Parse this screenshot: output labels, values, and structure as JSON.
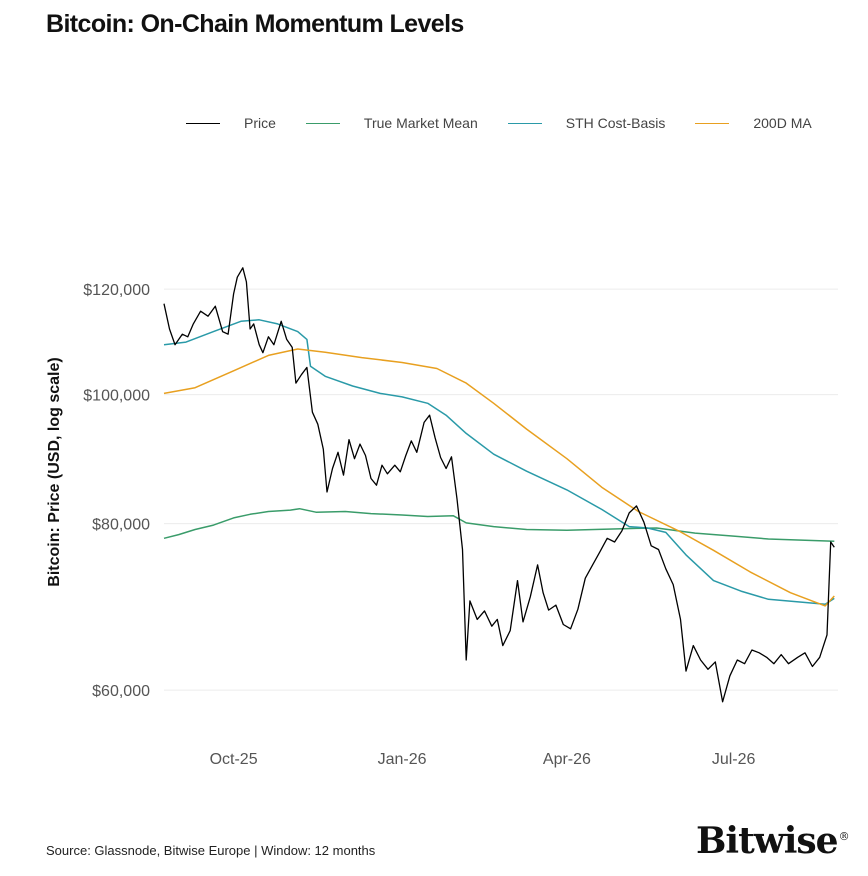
{
  "header": {
    "title": "Bitcoin: On-Chain Momentum Levels"
  },
  "footer": {
    "source": "Source: Glassnode, Bitwise Europe | Window: 12 months",
    "brand": "Bitwise",
    "brand_mark": "®"
  },
  "chart_data": {
    "type": "line",
    "title": "Bitcoin: On-Chain Momentum Levels",
    "xlabel": "",
    "ylabel": "Bitcoin: Price (USD, log scale)",
    "yscale": "log",
    "ylim": [
      56000,
      150000
    ],
    "xlim": [
      "2025-08-24",
      "2026-08-27"
    ],
    "x_ticks": [
      {
        "date": "2025-10-01",
        "label": "Oct-25"
      },
      {
        "date": "2026-01-01",
        "label": "Jan-26"
      },
      {
        "date": "2026-04-01",
        "label": "Apr-26"
      },
      {
        "date": "2026-07-01",
        "label": "Jul-26"
      }
    ],
    "y_ticks": [
      {
        "value": 60000,
        "label": "$60,000"
      },
      {
        "value": 80000,
        "label": "$80,000"
      },
      {
        "value": 100000,
        "label": "$100,000"
      },
      {
        "value": 120000,
        "label": "$120,000"
      }
    ],
    "grid": "horizontal",
    "legend_position": "top",
    "series": [
      {
        "name": "Price",
        "color": "#000000",
        "points": [
          [
            "2025-08-24",
            117000
          ],
          [
            "2025-08-27",
            112000
          ],
          [
            "2025-08-30",
            109000
          ],
          [
            "2025-09-03",
            111000
          ],
          [
            "2025-09-06",
            110500
          ],
          [
            "2025-09-09",
            113000
          ],
          [
            "2025-09-13",
            115500
          ],
          [
            "2025-09-17",
            114500
          ],
          [
            "2025-09-21",
            116500
          ],
          [
            "2025-09-25",
            111500
          ],
          [
            "2025-09-28",
            111000
          ],
          [
            "2025-10-01",
            119000
          ],
          [
            "2025-10-03",
            122500
          ],
          [
            "2025-10-06",
            124500
          ],
          [
            "2025-10-08",
            121500
          ],
          [
            "2025-10-10",
            112000
          ],
          [
            "2025-10-12",
            113000
          ],
          [
            "2025-10-15",
            109000
          ],
          [
            "2025-10-17",
            107500
          ],
          [
            "2025-10-20",
            110500
          ],
          [
            "2025-10-23",
            109000
          ],
          [
            "2025-10-27",
            113500
          ],
          [
            "2025-10-30",
            110000
          ],
          [
            "2025-11-02",
            108500
          ],
          [
            "2025-11-04",
            102000
          ],
          [
            "2025-11-07",
            103500
          ],
          [
            "2025-11-10",
            104800
          ],
          [
            "2025-11-13",
            97000
          ],
          [
            "2025-11-16",
            95000
          ],
          [
            "2025-11-19",
            91000
          ],
          [
            "2025-11-21",
            84500
          ],
          [
            "2025-11-24",
            88000
          ],
          [
            "2025-11-27",
            90500
          ],
          [
            "2025-11-30",
            87000
          ],
          [
            "2025-12-03",
            92500
          ],
          [
            "2025-12-06",
            89500
          ],
          [
            "2025-12-09",
            91800
          ],
          [
            "2025-12-12",
            90000
          ],
          [
            "2025-12-15",
            86500
          ],
          [
            "2025-12-18",
            85500
          ],
          [
            "2025-12-21",
            88500
          ],
          [
            "2025-12-24",
            87200
          ],
          [
            "2025-12-28",
            88500
          ],
          [
            "2025-12-31",
            87500
          ],
          [
            "2026-01-03",
            90000
          ],
          [
            "2026-01-06",
            92300
          ],
          [
            "2026-01-09",
            90500
          ],
          [
            "2026-01-13",
            95300
          ],
          [
            "2026-01-16",
            96500
          ],
          [
            "2026-01-19",
            92800
          ],
          [
            "2026-01-22",
            89700
          ],
          [
            "2026-01-25",
            88000
          ],
          [
            "2026-01-28",
            89800
          ],
          [
            "2026-01-31",
            83500
          ],
          [
            "2026-02-03",
            76500
          ],
          [
            "2026-02-05",
            63200
          ],
          [
            "2026-02-07",
            70000
          ],
          [
            "2026-02-11",
            67800
          ],
          [
            "2026-02-15",
            68800
          ],
          [
            "2026-02-19",
            67000
          ],
          [
            "2026-02-22",
            67800
          ],
          [
            "2026-02-25",
            64800
          ],
          [
            "2026-03-01",
            66500
          ],
          [
            "2026-03-05",
            72500
          ],
          [
            "2026-03-08",
            67500
          ],
          [
            "2026-03-12",
            70500
          ],
          [
            "2026-03-16",
            74500
          ],
          [
            "2026-03-19",
            71000
          ],
          [
            "2026-03-22",
            68900
          ],
          [
            "2026-03-26",
            69500
          ],
          [
            "2026-03-30",
            67200
          ],
          [
            "2026-04-03",
            66700
          ],
          [
            "2026-04-07",
            69000
          ],
          [
            "2026-04-11",
            72800
          ],
          [
            "2026-04-15",
            74500
          ],
          [
            "2026-04-19",
            76200
          ],
          [
            "2026-04-23",
            78000
          ],
          [
            "2026-04-27",
            77500
          ],
          [
            "2026-05-01",
            79000
          ],
          [
            "2026-05-05",
            81500
          ],
          [
            "2026-05-09",
            82500
          ],
          [
            "2026-05-13",
            80200
          ],
          [
            "2026-05-17",
            77000
          ],
          [
            "2026-05-21",
            76500
          ],
          [
            "2026-05-25",
            74000
          ],
          [
            "2026-05-29",
            72000
          ],
          [
            "2026-06-02",
            67800
          ],
          [
            "2026-06-05",
            62000
          ],
          [
            "2026-06-09",
            64800
          ],
          [
            "2026-06-13",
            63200
          ],
          [
            "2026-06-17",
            62200
          ],
          [
            "2026-06-21",
            63000
          ],
          [
            "2026-06-25",
            58800
          ],
          [
            "2026-06-29",
            61500
          ],
          [
            "2026-07-03",
            63200
          ],
          [
            "2026-07-07",
            62800
          ],
          [
            "2026-07-11",
            64300
          ],
          [
            "2026-07-15",
            64000
          ],
          [
            "2026-07-19",
            63500
          ],
          [
            "2026-07-23",
            62800
          ],
          [
            "2026-07-27",
            63800
          ],
          [
            "2026-07-31",
            62800
          ],
          [
            "2026-08-05",
            63500
          ],
          [
            "2026-08-09",
            64000
          ],
          [
            "2026-08-13",
            62500
          ],
          [
            "2026-08-17",
            63500
          ],
          [
            "2026-08-21",
            66000
          ],
          [
            "2026-08-23",
            77500
          ],
          [
            "2026-08-25",
            76800
          ]
        ]
      },
      {
        "name": "True Market Mean",
        "color": "#3a9c6a",
        "points": [
          [
            "2025-08-24",
            78000
          ],
          [
            "2025-09-01",
            78500
          ],
          [
            "2025-09-10",
            79200
          ],
          [
            "2025-09-20",
            79800
          ],
          [
            "2025-10-01",
            80800
          ],
          [
            "2025-10-10",
            81300
          ],
          [
            "2025-10-20",
            81700
          ],
          [
            "2025-11-01",
            81900
          ],
          [
            "2025-11-06",
            82100
          ],
          [
            "2025-11-15",
            81600
          ],
          [
            "2025-12-01",
            81700
          ],
          [
            "2025-12-15",
            81400
          ],
          [
            "2026-01-01",
            81200
          ],
          [
            "2026-01-15",
            81000
          ],
          [
            "2026-01-29",
            81100
          ],
          [
            "2026-02-05",
            80100
          ],
          [
            "2026-02-20",
            79600
          ],
          [
            "2026-03-10",
            79200
          ],
          [
            "2026-04-01",
            79100
          ],
          [
            "2026-05-01",
            79300
          ],
          [
            "2026-05-20",
            79400
          ],
          [
            "2026-06-10",
            78700
          ],
          [
            "2026-07-01",
            78300
          ],
          [
            "2026-07-20",
            77900
          ],
          [
            "2026-08-25",
            77600
          ]
        ]
      },
      {
        "name": "STH Cost-Basis",
        "color": "#2a9aa8",
        "points": [
          [
            "2025-08-24",
            109000
          ],
          [
            "2025-09-05",
            109500
          ],
          [
            "2025-09-20",
            111500
          ],
          [
            "2025-10-05",
            113500
          ],
          [
            "2025-10-15",
            113800
          ],
          [
            "2025-10-25",
            113000
          ],
          [
            "2025-11-05",
            111500
          ],
          [
            "2025-11-10",
            110000
          ],
          [
            "2025-11-12",
            105000
          ],
          [
            "2025-11-20",
            103200
          ],
          [
            "2025-12-05",
            101500
          ],
          [
            "2025-12-20",
            100200
          ],
          [
            "2026-01-01",
            99600
          ],
          [
            "2026-01-15",
            98500
          ],
          [
            "2026-01-25",
            96500
          ],
          [
            "2026-02-05",
            93500
          ],
          [
            "2026-02-20",
            90200
          ],
          [
            "2026-03-10",
            87600
          ],
          [
            "2026-04-01",
            84800
          ],
          [
            "2026-04-20",
            82000
          ],
          [
            "2026-05-05",
            79600
          ],
          [
            "2026-05-15",
            79400
          ],
          [
            "2026-05-25",
            78800
          ],
          [
            "2026-06-05",
            75800
          ],
          [
            "2026-06-20",
            72500
          ],
          [
            "2026-07-05",
            71200
          ],
          [
            "2026-07-20",
            70200
          ],
          [
            "2026-08-10",
            69800
          ],
          [
            "2026-08-20",
            69600
          ],
          [
            "2026-08-25",
            70300
          ]
        ]
      },
      {
        "name": "200D MA",
        "color": "#e8a020",
        "points": [
          [
            "2025-08-24",
            100200
          ],
          [
            "2025-09-10",
            101200
          ],
          [
            "2025-10-01",
            104200
          ],
          [
            "2025-10-20",
            107000
          ],
          [
            "2025-11-05",
            108200
          ],
          [
            "2025-11-20",
            107600
          ],
          [
            "2025-12-10",
            106600
          ],
          [
            "2026-01-01",
            105700
          ],
          [
            "2026-01-20",
            104600
          ],
          [
            "2026-02-05",
            102000
          ],
          [
            "2026-02-20",
            98500
          ],
          [
            "2026-03-10",
            94200
          ],
          [
            "2026-04-01",
            89500
          ],
          [
            "2026-04-20",
            85200
          ],
          [
            "2026-05-10",
            81700
          ],
          [
            "2026-06-01",
            79000
          ],
          [
            "2026-06-20",
            76400
          ],
          [
            "2026-07-10",
            73600
          ],
          [
            "2026-08-01",
            71000
          ],
          [
            "2026-08-20",
            69400
          ],
          [
            "2026-08-25",
            70600
          ]
        ]
      }
    ]
  }
}
